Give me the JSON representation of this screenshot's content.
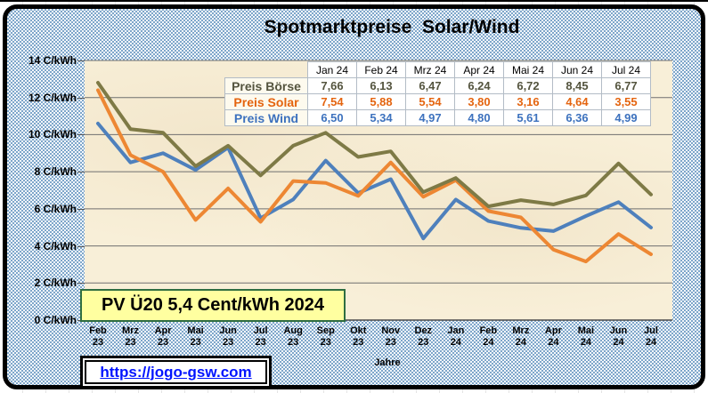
{
  "title": "Spotmarktpreise  Solar/Wind",
  "annotation": {
    "text": "PV Ü20 5,4 Cent/kWh 2024"
  },
  "link": {
    "text": "https://jogo-gsw.com",
    "href": "https://jogo-gsw.com"
  },
  "colors": {
    "boerse_line": "#7E7A46",
    "boerse_text": "#54543E",
    "solar_line": "#ED8733",
    "solar_text": "#E4640F",
    "wind_line": "#4E80BC",
    "wind_text": "#3D72BE",
    "plot_bg": "#F8EFD8",
    "frame_checker": "#7EA6CA",
    "grid": "#6F6F6F",
    "annotation_bg": "#FFFFA0",
    "annotation_border": "#2F6E41",
    "link_color": "#0014FF"
  },
  "table": {
    "col_headers": [
      "Jan 24",
      "Feb 24",
      "Mrz 24",
      "Apr 24",
      "Mai 24",
      "Jun 24",
      "Jul 24"
    ],
    "rows": [
      {
        "label": "Preis Börse",
        "key": "boerse",
        "values": [
          "7,66",
          "6,13",
          "6,47",
          "6,24",
          "6,72",
          "8,45",
          "6,77"
        ]
      },
      {
        "label": "Preis Solar",
        "key": "solar",
        "values": [
          "7,54",
          "5,88",
          "5,54",
          "3,80",
          "3,16",
          "4,64",
          "3,55"
        ]
      },
      {
        "label": "Preis Wind",
        "key": "wind",
        "values": [
          "6,50",
          "5,34",
          "4,97",
          "4,80",
          "5,61",
          "6,36",
          "4,99"
        ]
      }
    ]
  },
  "chart_data": {
    "type": "line",
    "title": "Spotmarktpreise Solar/Wind",
    "xlabel": "Jahre",
    "ylabel": "C/kWh",
    "ylim": [
      0,
      14
    ],
    "grid": true,
    "y_ticks": [
      14,
      12,
      10,
      8,
      6,
      4,
      2,
      0
    ],
    "y_tick_labels": [
      "14 C/kWh",
      "12 C/kWh",
      "10 C/kWh",
      "8 C/kWh",
      "6 C/kWh",
      "4 C/kWh",
      "2 C/kWh",
      "0 C/kWh"
    ],
    "categories": [
      "Feb 23",
      "Mrz 23",
      "Apr 23",
      "Mai 23",
      "Jun 23",
      "Jul 23",
      "Aug 23",
      "Sep 23",
      "Okt 23",
      "Nov 23",
      "Dez 23",
      "Jan 24",
      "Feb 24",
      "Mrz 24",
      "Apr 24",
      "Mai 24",
      "Jun 24",
      "Jul 24"
    ],
    "series": [
      {
        "name": "Preis Börse",
        "key": "boerse",
        "values": [
          12.8,
          10.3,
          10.1,
          8.3,
          9.4,
          7.8,
          9.4,
          10.1,
          8.8,
          9.1,
          6.9,
          7.66,
          6.13,
          6.47,
          6.24,
          6.72,
          8.45,
          6.77
        ]
      },
      {
        "name": "Preis Solar",
        "key": "solar",
        "values": [
          12.4,
          8.9,
          8.0,
          5.4,
          7.1,
          5.3,
          7.5,
          7.4,
          6.7,
          8.5,
          6.65,
          7.54,
          5.88,
          5.54,
          3.8,
          3.16,
          4.64,
          3.55
        ]
      },
      {
        "name": "Preis Wind",
        "key": "wind",
        "values": [
          10.6,
          8.5,
          9.0,
          8.1,
          9.3,
          5.5,
          6.5,
          8.6,
          6.85,
          7.6,
          4.4,
          6.5,
          5.34,
          4.97,
          4.8,
          5.61,
          6.36,
          4.99
        ]
      }
    ]
  }
}
